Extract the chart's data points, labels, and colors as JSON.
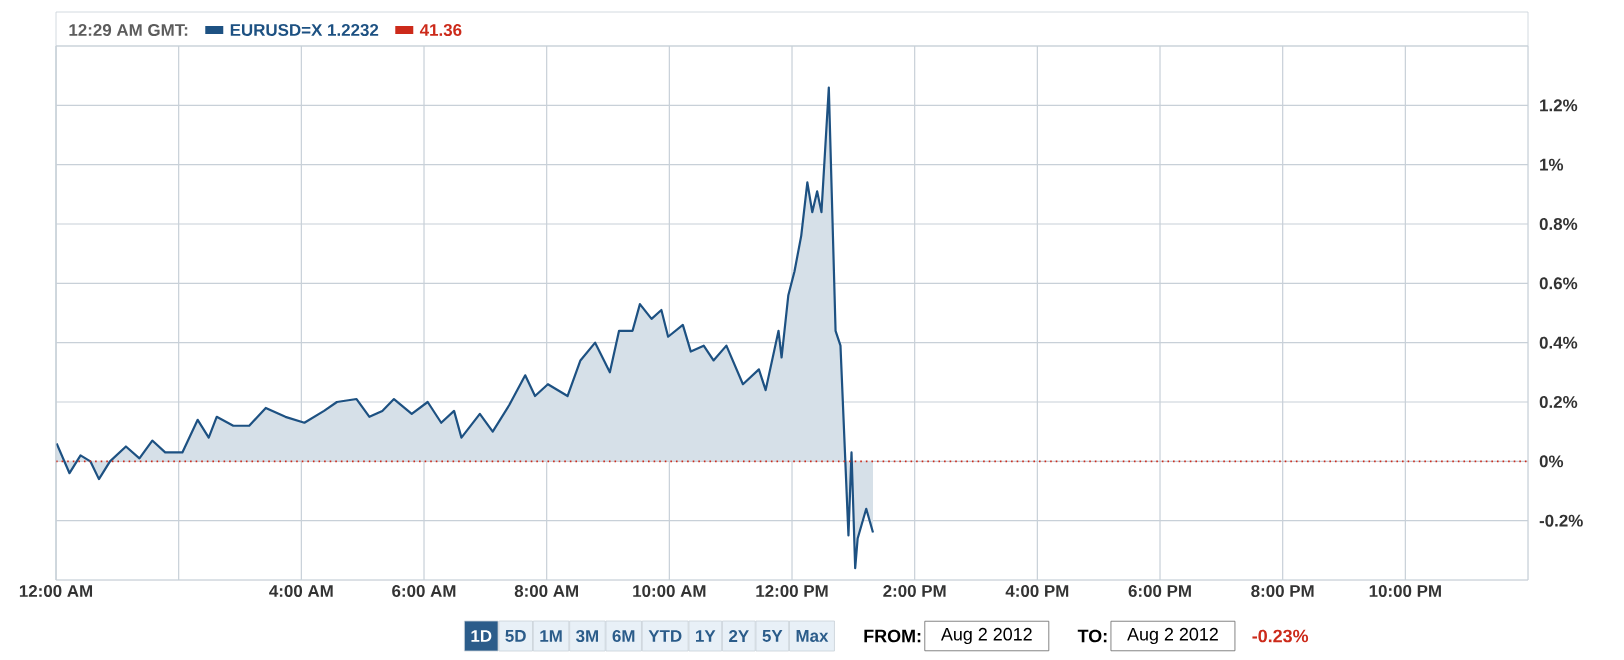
{
  "chart_data": {
    "type": "area",
    "x": [
      0.01,
      0.22,
      0.4,
      0.56,
      0.7,
      0.88,
      1.14,
      1.36,
      1.57,
      1.78,
      2.06,
      2.31,
      2.49,
      2.62,
      2.89,
      3.15,
      3.42,
      3.74,
      4.05,
      4.37,
      4.58,
      4.9,
      5.11,
      5.32,
      5.51,
      5.8,
      6.06,
      6.28,
      6.49,
      6.61,
      6.91,
      7.12,
      7.39,
      7.65,
      7.81,
      8.02,
      8.34,
      8.55,
      8.79,
      9.03,
      9.18,
      9.4,
      9.52,
      9.71,
      9.87,
      9.98,
      10.22,
      10.35,
      10.56,
      10.72,
      10.93,
      11.2,
      11.46,
      11.57,
      11.78,
      11.83,
      11.94,
      12.04,
      12.15,
      12.25,
      12.33,
      12.41,
      12.48,
      12.6,
      12.71,
      12.79,
      12.92,
      12.97,
      13.03,
      13.07,
      13.21,
      13.32
    ],
    "series": [
      {
        "name": "EURUSD=X 1.2232",
        "color": "#1d5182",
        "values": [
          0.06,
          -0.04,
          0.02,
          0.0,
          -0.06,
          0.0,
          0.05,
          0.01,
          0.07,
          0.03,
          0.03,
          0.14,
          0.08,
          0.15,
          0.12,
          0.12,
          0.18,
          0.15,
          0.13,
          0.17,
          0.2,
          0.21,
          0.15,
          0.17,
          0.21,
          0.16,
          0.2,
          0.13,
          0.17,
          0.08,
          0.16,
          0.1,
          0.19,
          0.29,
          0.22,
          0.26,
          0.22,
          0.34,
          0.4,
          0.3,
          0.44,
          0.44,
          0.53,
          0.48,
          0.51,
          0.42,
          0.46,
          0.37,
          0.39,
          0.34,
          0.39,
          0.26,
          0.31,
          0.24,
          0.44,
          0.35,
          0.56,
          0.64,
          0.76,
          0.94,
          0.84,
          0.91,
          0.84,
          1.26,
          0.44,
          0.39,
          -0.25,
          0.03,
          -0.36,
          -0.26,
          -0.16,
          -0.24
        ]
      },
      {
        "name": "41.36",
        "type": "line",
        "line_style": "dotted",
        "color": "#cc2a1a",
        "x": [
          0,
          24
        ],
        "values": [
          0,
          0
        ]
      }
    ],
    "xlim": [
      0,
      24
    ],
    "xticks": [
      {
        "value": 0,
        "label": "12:00 AM"
      },
      {
        "value": 2,
        "label": null
      },
      {
        "value": 4,
        "label": "4:00 AM"
      },
      {
        "value": 6,
        "label": "6:00 AM"
      },
      {
        "value": 8,
        "label": "8:00 AM"
      },
      {
        "value": 10,
        "label": "10:00 AM"
      },
      {
        "value": 12,
        "label": "12:00 PM"
      },
      {
        "value": 14,
        "label": "2:00 PM"
      },
      {
        "value": 16,
        "label": "4:00 PM"
      },
      {
        "value": 18,
        "label": "6:00 PM"
      },
      {
        "value": 20,
        "label": "8:00 PM"
      },
      {
        "value": 22,
        "label": "10:00 PM"
      }
    ],
    "ylim": [
      -0.4,
      1.4
    ],
    "yticks": [
      {
        "value": -0.2,
        "label": "-0.2%"
      },
      {
        "value": 0,
        "label": "0%"
      },
      {
        "value": 0.2,
        "label": "0.2%"
      },
      {
        "value": 0.4,
        "label": "0.4%"
      },
      {
        "value": 0.6,
        "label": "0.6%"
      },
      {
        "value": 0.8,
        "label": "0.8%"
      },
      {
        "value": 1,
        "label": "1%"
      },
      {
        "value": 1.2,
        "label": "1.2%"
      },
      {
        "value": 1.4,
        "label": null
      }
    ],
    "grid": true,
    "legend": "top left",
    "annotations": [
      "12:29 AM GMT:",
      "1D",
      "5D",
      "1M",
      "3M",
      "6M",
      "YTD",
      "1Y",
      "2Y",
      "5Y",
      "Max",
      "FROM:",
      "Aug 2 2012",
      "TO:",
      "Aug 2 2012",
      "-0.23%"
    ]
  }
}
